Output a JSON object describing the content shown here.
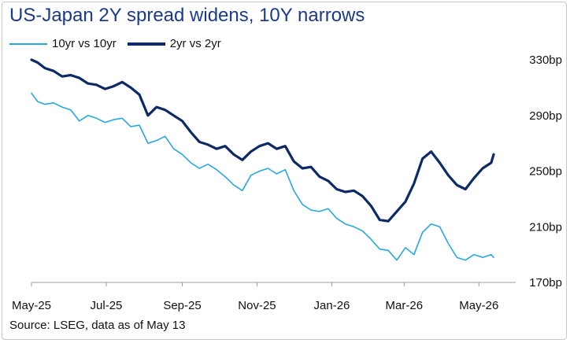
{
  "title": "US-Japan 2Y spread widens, 10Y narrows",
  "source": "Source: LSEG, data as of May 13",
  "colors": {
    "title": "#1b3a8a",
    "series_10y": "#28a8e0",
    "series_2y": "#0d2a66",
    "axis": "#9e9e9e"
  },
  "chart_data": {
    "type": "line",
    "title": "US-Japan 2Y spread widens, 10Y narrows",
    "xlabel": "",
    "ylabel": "",
    "x_range": [
      "2025-05-01",
      "2026-05-31"
    ],
    "ylim": [
      170,
      330
    ],
    "grid": false,
    "legend_placement": "top-left",
    "y_ticks": [
      {
        "value": 330,
        "label": "330bp"
      },
      {
        "value": 290,
        "label": "290bp"
      },
      {
        "value": 250,
        "label": "250bp"
      },
      {
        "value": 210,
        "label": "210bp"
      },
      {
        "value": 170,
        "label": "170bp"
      }
    ],
    "x_ticks": [
      {
        "date": "2025-05-01",
        "label": "May-25"
      },
      {
        "date": "2025-07-01",
        "label": "Jul-25"
      },
      {
        "date": "2025-09-01",
        "label": "Sep-25"
      },
      {
        "date": "2025-11-01",
        "label": "Nov-25"
      },
      {
        "date": "2026-01-01",
        "label": "Jan-26"
      },
      {
        "date": "2026-03-01",
        "label": "Mar-26"
      },
      {
        "date": "2026-05-01",
        "label": "May-26"
      }
    ],
    "series": [
      {
        "name": "10yr vs 10yr",
        "color": "#28a8e0",
        "width": 1.6,
        "points": [
          [
            "2025-05-01",
            306
          ],
          [
            "2025-05-06",
            300
          ],
          [
            "2025-05-12",
            298
          ],
          [
            "2025-05-19",
            299
          ],
          [
            "2025-05-26",
            296
          ],
          [
            "2025-06-02",
            294
          ],
          [
            "2025-06-09",
            286
          ],
          [
            "2025-06-16",
            290
          ],
          [
            "2025-06-23",
            288
          ],
          [
            "2025-06-30",
            285
          ],
          [
            "2025-07-07",
            287
          ],
          [
            "2025-07-14",
            288
          ],
          [
            "2025-07-21",
            282
          ],
          [
            "2025-07-28",
            283
          ],
          [
            "2025-08-04",
            270
          ],
          [
            "2025-08-11",
            272
          ],
          [
            "2025-08-18",
            275
          ],
          [
            "2025-08-25",
            266
          ],
          [
            "2025-09-01",
            262
          ],
          [
            "2025-09-08",
            256
          ],
          [
            "2025-09-15",
            252
          ],
          [
            "2025-09-22",
            255
          ],
          [
            "2025-09-29",
            251
          ],
          [
            "2025-10-06",
            246
          ],
          [
            "2025-10-13",
            240
          ],
          [
            "2025-10-20",
            236
          ],
          [
            "2025-10-27",
            247
          ],
          [
            "2025-11-03",
            250
          ],
          [
            "2025-11-10",
            252
          ],
          [
            "2025-11-17",
            248
          ],
          [
            "2025-11-24",
            251
          ],
          [
            "2025-12-01",
            236
          ],
          [
            "2025-12-08",
            226
          ],
          [
            "2025-12-15",
            222
          ],
          [
            "2025-12-22",
            221
          ],
          [
            "2025-12-29",
            223
          ],
          [
            "2026-01-05",
            216
          ],
          [
            "2026-01-12",
            212
          ],
          [
            "2026-01-19",
            210
          ],
          [
            "2026-01-26",
            207
          ],
          [
            "2026-02-02",
            201
          ],
          [
            "2026-02-09",
            194
          ],
          [
            "2026-02-16",
            193
          ],
          [
            "2026-02-23",
            186
          ],
          [
            "2026-03-02",
            195
          ],
          [
            "2026-03-09",
            190
          ],
          [
            "2026-03-16",
            206
          ],
          [
            "2026-03-23",
            212
          ],
          [
            "2026-03-30",
            210
          ],
          [
            "2026-04-06",
            198
          ],
          [
            "2026-04-13",
            188
          ],
          [
            "2026-04-20",
            186
          ],
          [
            "2026-04-27",
            190
          ],
          [
            "2026-05-04",
            188
          ],
          [
            "2026-05-11",
            190
          ],
          [
            "2026-05-13",
            188
          ]
        ]
      },
      {
        "name": "2yr vs 2yr",
        "color": "#0d2a66",
        "width": 3.2,
        "points": [
          [
            "2025-05-01",
            330
          ],
          [
            "2025-05-06",
            328
          ],
          [
            "2025-05-12",
            324
          ],
          [
            "2025-05-19",
            322
          ],
          [
            "2025-05-26",
            318
          ],
          [
            "2025-06-02",
            319
          ],
          [
            "2025-06-09",
            317
          ],
          [
            "2025-06-16",
            313
          ],
          [
            "2025-06-23",
            312
          ],
          [
            "2025-06-30",
            309
          ],
          [
            "2025-07-07",
            311
          ],
          [
            "2025-07-14",
            314
          ],
          [
            "2025-07-21",
            310
          ],
          [
            "2025-07-28",
            305
          ],
          [
            "2025-08-04",
            290
          ],
          [
            "2025-08-11",
            296
          ],
          [
            "2025-08-18",
            294
          ],
          [
            "2025-08-25",
            290
          ],
          [
            "2025-09-01",
            286
          ],
          [
            "2025-09-08",
            278
          ],
          [
            "2025-09-15",
            271
          ],
          [
            "2025-09-22",
            269
          ],
          [
            "2025-09-29",
            266
          ],
          [
            "2025-10-06",
            268
          ],
          [
            "2025-10-13",
            262
          ],
          [
            "2025-10-20",
            258
          ],
          [
            "2025-10-27",
            264
          ],
          [
            "2025-11-03",
            268
          ],
          [
            "2025-11-10",
            270
          ],
          [
            "2025-11-17",
            266
          ],
          [
            "2025-11-24",
            268
          ],
          [
            "2025-12-01",
            257
          ],
          [
            "2025-12-08",
            252
          ],
          [
            "2025-12-15",
            253
          ],
          [
            "2025-12-22",
            246
          ],
          [
            "2025-12-29",
            243
          ],
          [
            "2026-01-05",
            237
          ],
          [
            "2026-01-12",
            235
          ],
          [
            "2026-01-19",
            236
          ],
          [
            "2026-01-26",
            232
          ],
          [
            "2026-02-02",
            225
          ],
          [
            "2026-02-09",
            215
          ],
          [
            "2026-02-16",
            214
          ],
          [
            "2026-02-23",
            221
          ],
          [
            "2026-03-02",
            228
          ],
          [
            "2026-03-09",
            241
          ],
          [
            "2026-03-16",
            259
          ],
          [
            "2026-03-23",
            264
          ],
          [
            "2026-03-30",
            256
          ],
          [
            "2026-04-06",
            247
          ],
          [
            "2026-04-13",
            240
          ],
          [
            "2026-04-20",
            237
          ],
          [
            "2026-04-27",
            245
          ],
          [
            "2026-05-04",
            252
          ],
          [
            "2026-05-11",
            256
          ],
          [
            "2026-05-13",
            262
          ]
        ]
      }
    ]
  }
}
